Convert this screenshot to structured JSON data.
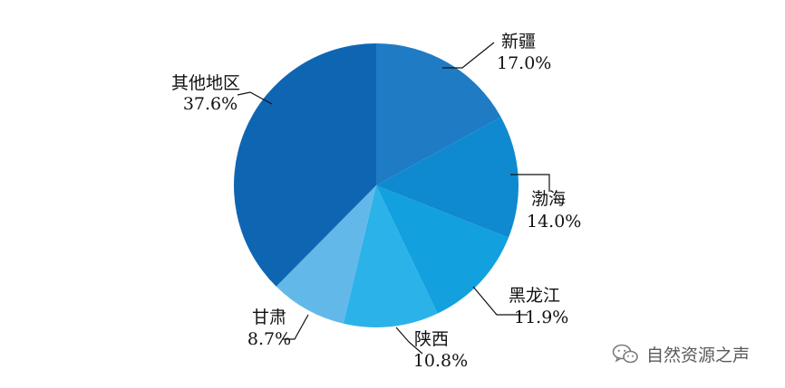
{
  "chart_data": {
    "type": "pie",
    "title": "",
    "slices": [
      {
        "name": "新疆",
        "value": 17.0,
        "label": "17.0%",
        "color": "#1e7bc4"
      },
      {
        "name": "渤海",
        "value": 14.0,
        "label": "14.0%",
        "color": "#0f8ad0"
      },
      {
        "name": "黑龙江",
        "value": 11.9,
        "label": "11.9%",
        "color": "#12a0df"
      },
      {
        "name": "陕西",
        "value": 10.8,
        "label": "10.8%",
        "color": "#2bb2e8"
      },
      {
        "name": "甘肃",
        "value": 8.7,
        "label": "8.7%",
        "color": "#63b8ea"
      },
      {
        "name": "其他地区",
        "value": 37.6,
        "label": "37.6%",
        "color": "#0e66b3"
      }
    ]
  },
  "watermark": {
    "text": "自然资源之声",
    "icon": "wechat-icon"
  }
}
